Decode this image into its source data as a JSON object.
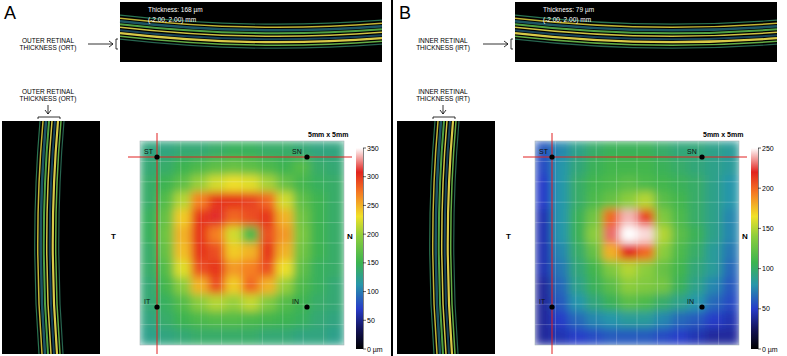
{
  "chart_data": [
    {
      "type": "heatmap",
      "title": "A",
      "annotations": [
        "Thickness: 168 µm",
        "(-2.00, 2.00) mm",
        "OUTER RETINAL THICKNESS (ORT)",
        "OUTER RETINAL THICKNESS (ORT)",
        "5mm x 5mm",
        "ST",
        "SN",
        "IT",
        "IN",
        "T",
        "N"
      ],
      "cells": [
        [
          130,
          130,
          135,
          135,
          140,
          145,
          145,
          140,
          140,
          135,
          130,
          130
        ],
        [
          135,
          140,
          150,
          160,
          170,
          175,
          170,
          160,
          150,
          165,
          140,
          135
        ],
        [
          140,
          150,
          170,
          200,
          220,
          230,
          225,
          205,
          175,
          155,
          145,
          140
        ],
        [
          140,
          165,
          210,
          270,
          300,
          300,
          295,
          280,
          220,
          170,
          150,
          140
        ],
        [
          145,
          175,
          240,
          300,
          310,
          280,
          290,
          300,
          250,
          180,
          150,
          140
        ],
        [
          145,
          180,
          250,
          300,
          270,
          220,
          160,
          290,
          260,
          185,
          150,
          140
        ],
        [
          140,
          175,
          245,
          300,
          290,
          240,
          250,
          300,
          250,
          180,
          150,
          140
        ],
        [
          140,
          165,
          225,
          290,
          300,
          260,
          270,
          290,
          230,
          170,
          145,
          140
        ],
        [
          135,
          155,
          195,
          250,
          290,
          240,
          280,
          250,
          200,
          160,
          145,
          135
        ],
        [
          135,
          145,
          165,
          195,
          210,
          200,
          215,
          190,
          165,
          150,
          140,
          135
        ],
        [
          130,
          140,
          150,
          160,
          165,
          165,
          160,
          155,
          150,
          145,
          135,
          130
        ],
        [
          125,
          130,
          135,
          140,
          140,
          140,
          140,
          135,
          135,
          130,
          130,
          125
        ]
      ],
      "zlim": [
        0,
        350
      ],
      "zticks": [
        {
          "value": 0,
          "label": "0 µm"
        },
        50,
        100,
        150,
        200,
        250,
        300,
        350
      ]
    },
    {
      "type": "heatmap",
      "title": "B",
      "annotations": [
        "Thickness: 79 µm",
        "(-2.00, 2.00) mm",
        "INNER RETINAL THICKNESS (IRT)",
        "INNER RETINAL THICKNESS (IRT)",
        "5mm x 5mm",
        "ST",
        "SN",
        "IT",
        "IN",
        "T",
        "N"
      ],
      "cells": [
        [
          60,
          75,
          90,
          100,
          105,
          105,
          105,
          100,
          95,
          95,
          90,
          85
        ],
        [
          55,
          80,
          95,
          105,
          110,
          110,
          110,
          105,
          100,
          95,
          90,
          85
        ],
        [
          50,
          80,
          100,
          110,
          115,
          120,
          115,
          110,
          105,
          100,
          90,
          80
        ],
        [
          50,
          80,
          100,
          115,
          125,
          140,
          150,
          120,
          110,
          100,
          90,
          80
        ],
        [
          45,
          80,
          105,
          130,
          200,
          240,
          210,
          135,
          115,
          100,
          90,
          75
        ],
        [
          45,
          80,
          105,
          140,
          230,
          250,
          245,
          150,
          120,
          105,
          90,
          75
        ],
        [
          45,
          75,
          100,
          125,
          180,
          220,
          200,
          140,
          115,
          100,
          85,
          70
        ],
        [
          45,
          70,
          95,
          110,
          135,
          150,
          140,
          125,
          110,
          95,
          85,
          65
        ],
        [
          40,
          65,
          90,
          105,
          120,
          140,
          135,
          130,
          105,
          90,
          75,
          60
        ],
        [
          40,
          60,
          80,
          95,
          105,
          120,
          115,
          100,
          90,
          80,
          65,
          55
        ],
        [
          40,
          50,
          65,
          75,
          80,
          85,
          85,
          75,
          65,
          60,
          50,
          45
        ],
        [
          40,
          45,
          50,
          55,
          60,
          60,
          60,
          55,
          50,
          45,
          40,
          40
        ]
      ],
      "zlim": [
        0,
        250
      ],
      "zticks": [
        {
          "value": 0,
          "label": "0 µm"
        },
        50,
        100,
        150,
        200,
        250
      ]
    }
  ]
}
